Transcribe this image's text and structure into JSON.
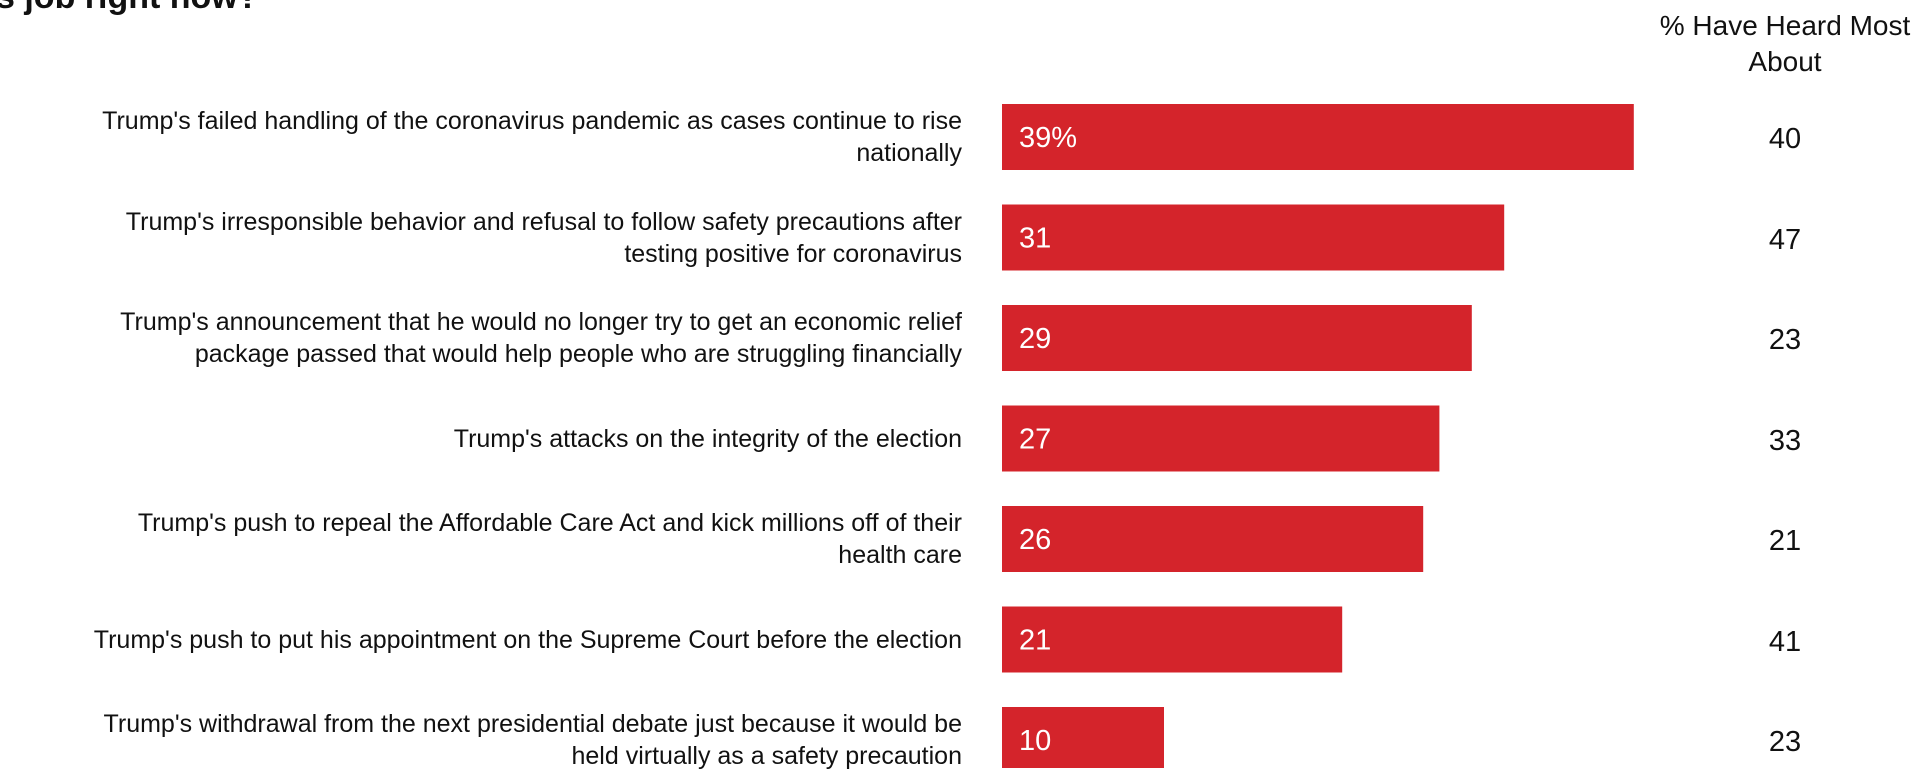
{
  "chart_data": {
    "type": "bar",
    "orientation": "horizontal",
    "title": "s job right now?",
    "right_column_header": "% Have Heard Most About",
    "categories": [
      "Trump's failed handling of the coronavirus pandemic as cases continue to rise nationally",
      "Trump's irresponsible behavior and refusal to follow safety precautions after testing positive for coronavirus",
      "Trump's announcement that he would no longer try to get an economic relief package passed that would help people who are struggling financially",
      "Trump's attacks on the integrity of the election",
      "Trump's push to repeal the Affordable Care Act and kick millions off of their health care",
      "Trump's push to put his appointment on the Supreme Court before the election",
      "Trump's withdrawal from the next presidential debate just because it would be held virtually as a safety precaution"
    ],
    "label_lines": [
      [
        "Trump's failed handling of the coronavirus pandemic as cases continue to rise",
        "nationally"
      ],
      [
        "Trump's irresponsible behavior and refusal to follow safety precautions after",
        "testing positive for coronavirus"
      ],
      [
        "Trump's announcement that he would no longer try to get an economic relief",
        "package passed that would help people who are struggling financially"
      ],
      [
        "Trump's attacks on the integrity of the election"
      ],
      [
        "Trump's push to repeal the Affordable Care Act and kick millions off of their",
        "health care"
      ],
      [
        "Trump's push to put his appointment on the Supreme Court before the election"
      ],
      [
        "Trump's withdrawal from the next presidential debate just because it would be",
        "held virtually as a safety precaution"
      ]
    ],
    "values": [
      39,
      31,
      29,
      27,
      26,
      21,
      10
    ],
    "value_labels": [
      "39%",
      "31",
      "29",
      "27",
      "26",
      "21",
      "10"
    ],
    "right_values": [
      40,
      47,
      23,
      33,
      21,
      41,
      23
    ],
    "xlim": [
      0,
      45
    ],
    "bar_color": "#d4242b",
    "bar_label_color": "#ffffff",
    "grid": false
  }
}
